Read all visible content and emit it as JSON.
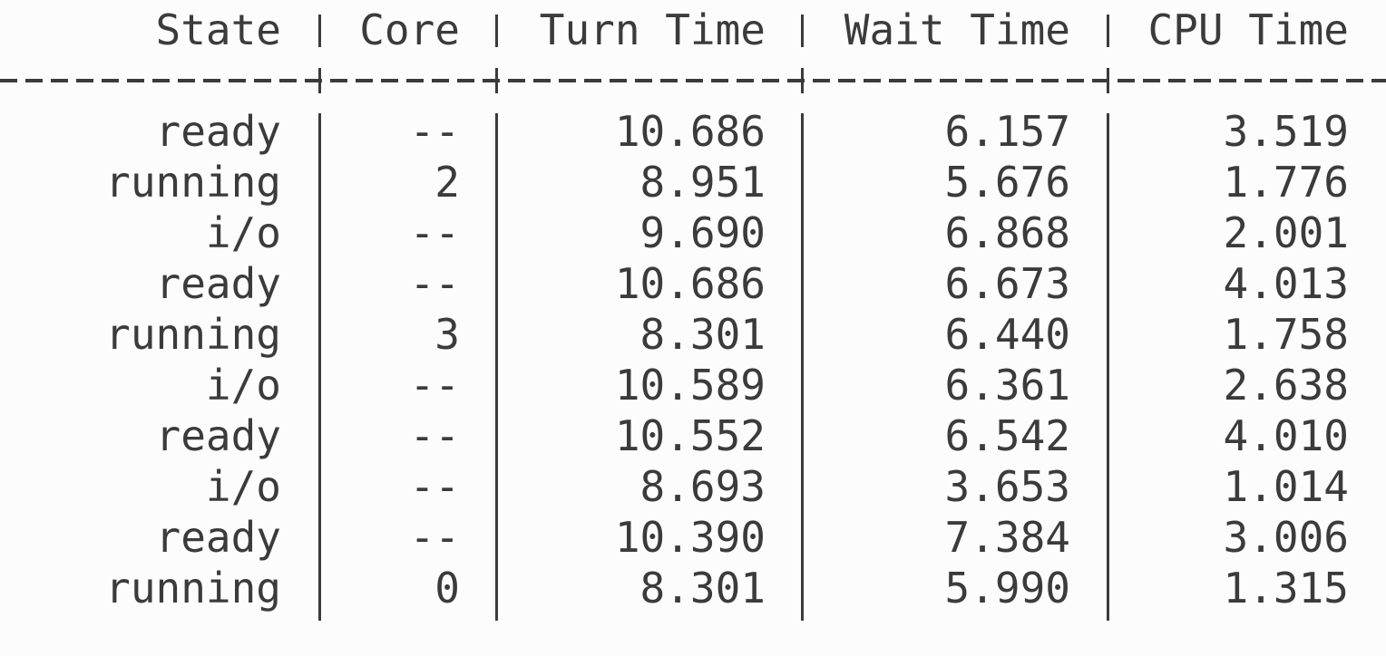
{
  "table": {
    "headers": {
      "state": "State",
      "core": "Core",
      "turn": "Turn Time",
      "wait": "Wait Time",
      "cpu": "CPU Time"
    },
    "rows": [
      {
        "state": "ready",
        "core": "--",
        "turn": "10.686",
        "wait": "6.157",
        "cpu": "3.519"
      },
      {
        "state": "running",
        "core": "2",
        "turn": "8.951",
        "wait": "5.676",
        "cpu": "1.776"
      },
      {
        "state": "i/o",
        "core": "--",
        "turn": "9.690",
        "wait": "6.868",
        "cpu": "2.001"
      },
      {
        "state": "ready",
        "core": "--",
        "turn": "10.686",
        "wait": "6.673",
        "cpu": "4.013"
      },
      {
        "state": "running",
        "core": "3",
        "turn": "8.301",
        "wait": "6.440",
        "cpu": "1.758"
      },
      {
        "state": "i/o",
        "core": "--",
        "turn": "10.589",
        "wait": "6.361",
        "cpu": "2.638"
      },
      {
        "state": "ready",
        "core": "--",
        "turn": "10.552",
        "wait": "6.542",
        "cpu": "4.010"
      },
      {
        "state": "i/o",
        "core": "--",
        "turn": "8.693",
        "wait": "3.653",
        "cpu": "1.014"
      },
      {
        "state": "ready",
        "core": "--",
        "turn": "10.390",
        "wait": "7.384",
        "cpu": "3.006"
      },
      {
        "state": "running",
        "core": "0",
        "turn": "8.301",
        "wait": "5.990",
        "cpu": "1.315"
      }
    ]
  },
  "colors": {
    "background": "#fcfcfc",
    "text": "#3b3b3b"
  }
}
